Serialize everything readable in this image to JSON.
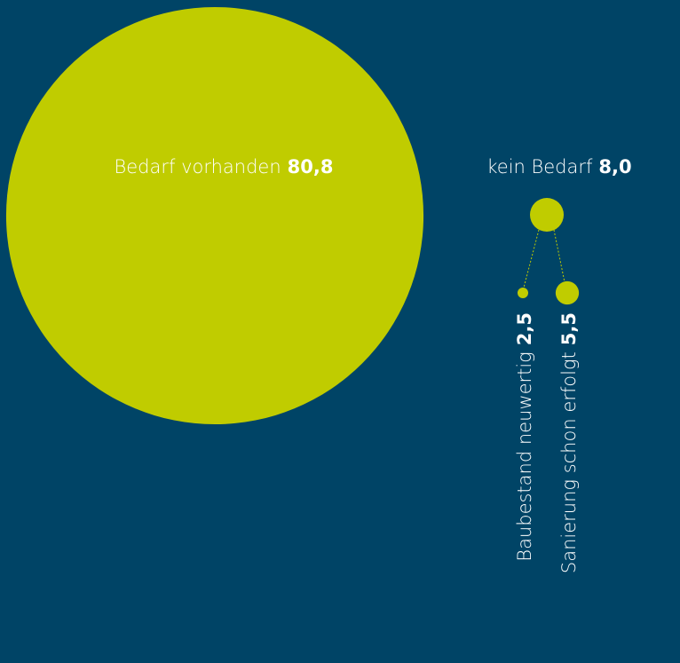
{
  "chart_data": {
    "type": "bubble",
    "color": "#c0cc00",
    "categories": [
      "Bedarf vorhanden",
      "kein Bedarf",
      "Baubestand neuwertig",
      "Sanierung schon erfolgt"
    ],
    "values": [
      80.8,
      8.0,
      2.5,
      5.5
    ],
    "value_labels": [
      "80,8",
      "8,0",
      "2,5",
      "5,5"
    ]
  }
}
